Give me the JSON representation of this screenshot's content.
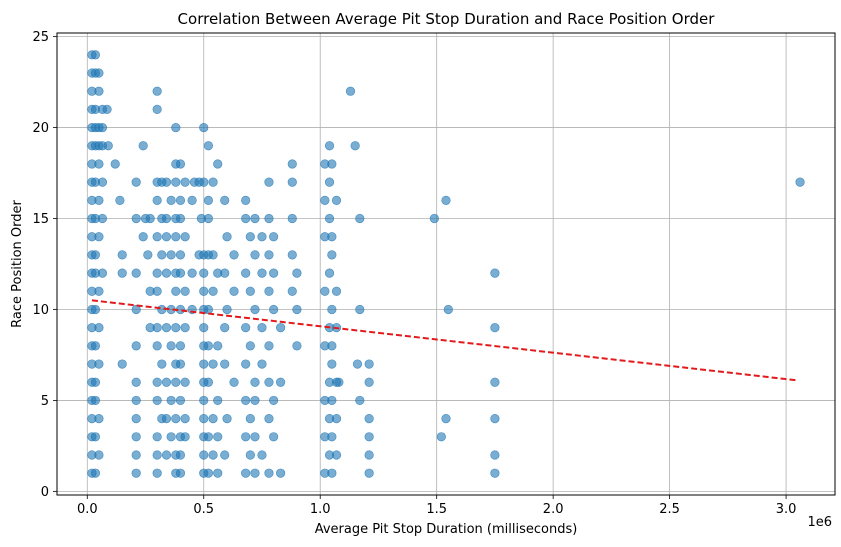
{
  "chart_data": {
    "type": "scatter",
    "title": "Correlation Between Average Pit Stop Duration and Race Position Order",
    "xlabel": "Average Pit Stop Duration (milliseconds)",
    "ylabel": "Race Position Order",
    "x_offset_label": "1e6",
    "x_scale_factor": 1000000,
    "xlim": [
      -130000,
      3210000
    ],
    "ylim": [
      -0.2,
      25.2
    ],
    "x_ticks": [
      0,
      500000,
      1000000,
      1500000,
      2000000,
      2500000,
      3000000
    ],
    "x_tick_labels": [
      "0.0",
      "0.5",
      "1.0",
      "1.5",
      "2.0",
      "2.5",
      "3.0"
    ],
    "y_ticks": [
      0,
      5,
      10,
      15,
      20,
      25
    ],
    "y_tick_labels": [
      "0",
      "5",
      "10",
      "15",
      "20",
      "25"
    ],
    "grid": true,
    "point_color": "#1f77b4",
    "point_alpha": 0.6,
    "trend_color": "#e31a1c",
    "trend_line": {
      "x": [
        20000,
        3050000
      ],
      "y": [
        10.5,
        6.1
      ]
    },
    "series": [
      {
        "points": [
          [
            20000,
            1
          ],
          [
            20000,
            2
          ],
          [
            20000,
            3
          ],
          [
            20000,
            4
          ],
          [
            20000,
            5
          ],
          [
            20000,
            6
          ],
          [
            20000,
            7
          ],
          [
            20000,
            8
          ],
          [
            20000,
            9
          ],
          [
            20000,
            10
          ],
          [
            20000,
            11
          ],
          [
            20000,
            12
          ],
          [
            20000,
            13
          ],
          [
            20000,
            14
          ],
          [
            20000,
            15
          ],
          [
            20000,
            16
          ],
          [
            20000,
            17
          ],
          [
            20000,
            18
          ],
          [
            20000,
            19
          ],
          [
            20000,
            20
          ],
          [
            20000,
            21
          ],
          [
            20000,
            22
          ],
          [
            20000,
            23
          ],
          [
            20000,
            24
          ],
          [
            35000,
            1
          ],
          [
            35000,
            3
          ],
          [
            35000,
            5
          ],
          [
            35000,
            6
          ],
          [
            35000,
            8
          ],
          [
            35000,
            10
          ],
          [
            35000,
            12
          ],
          [
            35000,
            13
          ],
          [
            35000,
            15
          ],
          [
            35000,
            17
          ],
          [
            35000,
            19
          ],
          [
            35000,
            20
          ],
          [
            35000,
            21
          ],
          [
            35000,
            23
          ],
          [
            35000,
            24
          ],
          [
            50000,
            2
          ],
          [
            50000,
            4
          ],
          [
            50000,
            7
          ],
          [
            50000,
            9
          ],
          [
            50000,
            11
          ],
          [
            50000,
            14
          ],
          [
            50000,
            16
          ],
          [
            50000,
            18
          ],
          [
            50000,
            19
          ],
          [
            50000,
            20
          ],
          [
            50000,
            22
          ],
          [
            50000,
            23
          ],
          [
            65000,
            19
          ],
          [
            65000,
            20
          ],
          [
            65000,
            21
          ],
          [
            65000,
            15
          ],
          [
            65000,
            17
          ],
          [
            65000,
            12
          ],
          [
            85000,
            21
          ],
          [
            90000,
            19
          ],
          [
            120000,
            18
          ],
          [
            140000,
            16
          ],
          [
            150000,
            7
          ],
          [
            150000,
            13
          ],
          [
            150000,
            12
          ],
          [
            210000,
            1
          ],
          [
            210000,
            2
          ],
          [
            210000,
            3
          ],
          [
            210000,
            4
          ],
          [
            210000,
            5
          ],
          [
            210000,
            6
          ],
          [
            210000,
            8
          ],
          [
            210000,
            10
          ],
          [
            210000,
            12
          ],
          [
            210000,
            15
          ],
          [
            210000,
            17
          ],
          [
            240000,
            14
          ],
          [
            240000,
            19
          ],
          [
            250000,
            15
          ],
          [
            260000,
            13
          ],
          [
            270000,
            9
          ],
          [
            270000,
            11
          ],
          [
            270000,
            15
          ],
          [
            300000,
            1
          ],
          [
            300000,
            2
          ],
          [
            300000,
            3
          ],
          [
            300000,
            5
          ],
          [
            300000,
            6
          ],
          [
            300000,
            8
          ],
          [
            300000,
            9
          ],
          [
            300000,
            11
          ],
          [
            300000,
            12
          ],
          [
            300000,
            14
          ],
          [
            300000,
            16
          ],
          [
            300000,
            17
          ],
          [
            300000,
            21
          ],
          [
            300000,
            22
          ],
          [
            320000,
            4
          ],
          [
            320000,
            7
          ],
          [
            320000,
            10
          ],
          [
            320000,
            13
          ],
          [
            320000,
            15
          ],
          [
            320000,
            17
          ],
          [
            340000,
            2
          ],
          [
            340000,
            4
          ],
          [
            340000,
            6
          ],
          [
            340000,
            9
          ],
          [
            340000,
            12
          ],
          [
            340000,
            14
          ],
          [
            340000,
            15
          ],
          [
            340000,
            17
          ],
          [
            360000,
            3
          ],
          [
            360000,
            5
          ],
          [
            360000,
            8
          ],
          [
            360000,
            10
          ],
          [
            360000,
            13
          ],
          [
            360000,
            16
          ],
          [
            380000,
            1
          ],
          [
            380000,
            2
          ],
          [
            380000,
            4
          ],
          [
            380000,
            6
          ],
          [
            380000,
            7
          ],
          [
            380000,
            9
          ],
          [
            380000,
            11
          ],
          [
            380000,
            12
          ],
          [
            380000,
            14
          ],
          [
            380000,
            15
          ],
          [
            380000,
            17
          ],
          [
            380000,
            18
          ],
          [
            380000,
            20
          ],
          [
            400000,
            1
          ],
          [
            400000,
            2
          ],
          [
            400000,
            3
          ],
          [
            400000,
            5
          ],
          [
            400000,
            7
          ],
          [
            400000,
            8
          ],
          [
            400000,
            10
          ],
          [
            400000,
            12
          ],
          [
            400000,
            13
          ],
          [
            400000,
            15
          ],
          [
            400000,
            16
          ],
          [
            400000,
            18
          ],
          [
            420000,
            3
          ],
          [
            420000,
            4
          ],
          [
            420000,
            6
          ],
          [
            420000,
            9
          ],
          [
            420000,
            11
          ],
          [
            420000,
            14
          ],
          [
            420000,
            17
          ],
          [
            450000,
            10
          ],
          [
            450000,
            12
          ],
          [
            450000,
            16
          ],
          [
            460000,
            17
          ],
          [
            480000,
            13
          ],
          [
            480000,
            17
          ],
          [
            490000,
            15
          ],
          [
            500000,
            1
          ],
          [
            500000,
            2
          ],
          [
            500000,
            3
          ],
          [
            500000,
            4
          ],
          [
            500000,
            5
          ],
          [
            500000,
            6
          ],
          [
            500000,
            7
          ],
          [
            500000,
            8
          ],
          [
            500000,
            9
          ],
          [
            500000,
            10
          ],
          [
            500000,
            11
          ],
          [
            500000,
            12
          ],
          [
            500000,
            13
          ],
          [
            500000,
            17
          ],
          [
            500000,
            20
          ],
          [
            520000,
            1
          ],
          [
            520000,
            3
          ],
          [
            520000,
            6
          ],
          [
            520000,
            8
          ],
          [
            520000,
            10
          ],
          [
            520000,
            13
          ],
          [
            520000,
            15
          ],
          [
            520000,
            16
          ],
          [
            520000,
            19
          ],
          [
            540000,
            2
          ],
          [
            540000,
            4
          ],
          [
            540000,
            7
          ],
          [
            540000,
            11
          ],
          [
            540000,
            13
          ],
          [
            540000,
            17
          ],
          [
            560000,
            1
          ],
          [
            560000,
            3
          ],
          [
            560000,
            5
          ],
          [
            560000,
            8
          ],
          [
            560000,
            12
          ],
          [
            560000,
            18
          ],
          [
            590000,
            2
          ],
          [
            590000,
            7
          ],
          [
            590000,
            9
          ],
          [
            590000,
            12
          ],
          [
            590000,
            16
          ],
          [
            600000,
            4
          ],
          [
            600000,
            10
          ],
          [
            600000,
            14
          ],
          [
            630000,
            6
          ],
          [
            630000,
            11
          ],
          [
            630000,
            13
          ],
          [
            680000,
            1
          ],
          [
            680000,
            3
          ],
          [
            680000,
            5
          ],
          [
            680000,
            7
          ],
          [
            680000,
            9
          ],
          [
            680000,
            12
          ],
          [
            680000,
            15
          ],
          [
            680000,
            16
          ],
          [
            700000,
            2
          ],
          [
            700000,
            4
          ],
          [
            700000,
            8
          ],
          [
            700000,
            11
          ],
          [
            700000,
            14
          ],
          [
            720000,
            1
          ],
          [
            720000,
            3
          ],
          [
            720000,
            5
          ],
          [
            720000,
            6
          ],
          [
            720000,
            10
          ],
          [
            720000,
            13
          ],
          [
            720000,
            15
          ],
          [
            750000,
            2
          ],
          [
            750000,
            7
          ],
          [
            750000,
            9
          ],
          [
            750000,
            12
          ],
          [
            750000,
            14
          ],
          [
            780000,
            1
          ],
          [
            780000,
            4
          ],
          [
            780000,
            6
          ],
          [
            780000,
            8
          ],
          [
            780000,
            11
          ],
          [
            780000,
            13
          ],
          [
            780000,
            15
          ],
          [
            780000,
            17
          ],
          [
            800000,
            3
          ],
          [
            800000,
            5
          ],
          [
            800000,
            10
          ],
          [
            800000,
            12
          ],
          [
            800000,
            14
          ],
          [
            830000,
            1
          ],
          [
            830000,
            6
          ],
          [
            830000,
            9
          ],
          [
            880000,
            11
          ],
          [
            880000,
            13
          ],
          [
            880000,
            15
          ],
          [
            880000,
            17
          ],
          [
            880000,
            18
          ],
          [
            900000,
            8
          ],
          [
            900000,
            10
          ],
          [
            900000,
            12
          ],
          [
            1020000,
            1
          ],
          [
            1020000,
            3
          ],
          [
            1020000,
            5
          ],
          [
            1020000,
            8
          ],
          [
            1020000,
            11
          ],
          [
            1020000,
            14
          ],
          [
            1020000,
            16
          ],
          [
            1020000,
            18
          ],
          [
            1040000,
            2
          ],
          [
            1040000,
            4
          ],
          [
            1040000,
            6
          ],
          [
            1040000,
            9
          ],
          [
            1040000,
            12
          ],
          [
            1040000,
            15
          ],
          [
            1040000,
            17
          ],
          [
            1040000,
            19
          ],
          [
            1050000,
            1
          ],
          [
            1050000,
            3
          ],
          [
            1050000,
            5
          ],
          [
            1050000,
            7
          ],
          [
            1050000,
            8
          ],
          [
            1050000,
            10
          ],
          [
            1050000,
            13
          ],
          [
            1050000,
            14
          ],
          [
            1050000,
            18
          ],
          [
            1070000,
            2
          ],
          [
            1070000,
            4
          ],
          [
            1070000,
            6
          ],
          [
            1070000,
            9
          ],
          [
            1070000,
            11
          ],
          [
            1070000,
            16
          ],
          [
            1080000,
            6
          ],
          [
            1130000,
            22
          ],
          [
            1150000,
            19
          ],
          [
            1160000,
            7
          ],
          [
            1170000,
            5
          ],
          [
            1170000,
            10
          ],
          [
            1170000,
            15
          ],
          [
            1210000,
            1
          ],
          [
            1210000,
            2
          ],
          [
            1210000,
            3
          ],
          [
            1210000,
            4
          ],
          [
            1210000,
            6
          ],
          [
            1210000,
            7
          ],
          [
            1490000,
            15
          ],
          [
            1520000,
            3
          ],
          [
            1540000,
            4
          ],
          [
            1540000,
            16
          ],
          [
            1550000,
            10
          ],
          [
            1750000,
            1
          ],
          [
            1750000,
            2
          ],
          [
            1750000,
            4
          ],
          [
            1750000,
            6
          ],
          [
            1750000,
            9
          ],
          [
            1750000,
            12
          ],
          [
            3060000,
            17
          ]
        ]
      }
    ]
  }
}
